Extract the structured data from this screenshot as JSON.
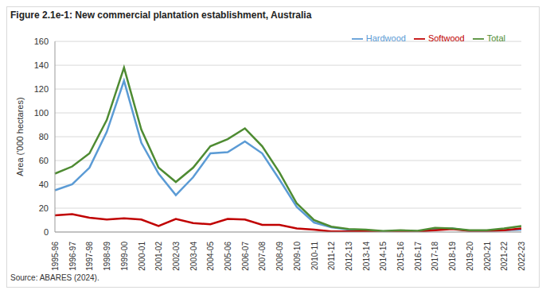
{
  "chart_data": {
    "type": "line",
    "title": "Figure 2.1e-1: New commercial plantation establishment, Australia",
    "source": "Source: ABARES (2024).",
    "y_label": "Area ('000 hectares)",
    "categories": [
      "1995-96",
      "1996-97",
      "1997-98",
      "1998-99",
      "1999-00",
      "2000-01",
      "2001-02",
      "2002-03",
      "2003-04",
      "2004-05",
      "2005-06",
      "2006-07",
      "2007-08",
      "2008-09",
      "2009-10",
      "2010-11",
      "2011-12",
      "2012-13",
      "2013-14",
      "2014-15",
      "2015-16",
      "2016-17",
      "2017-18",
      "2018-19",
      "2019-20",
      "2020-21",
      "2021-22",
      "2022-23"
    ],
    "series": [
      {
        "name": "Hardwood",
        "color": "#5B9BD5",
        "values": [
          35,
          40,
          54,
          84,
          127,
          75,
          49,
          31,
          46,
          66,
          67,
          76,
          66,
          44,
          21,
          8,
          4,
          2,
          1,
          0.5,
          1,
          0.5,
          2,
          3,
          1,
          1,
          1.5,
          2
        ]
      },
      {
        "name": "Softwood",
        "color": "#C00000",
        "values": [
          14,
          15,
          12,
          10.5,
          11.5,
          10.5,
          5,
          11,
          7.5,
          6.5,
          11,
          10.5,
          6,
          6,
          3,
          2,
          0.5,
          0.5,
          0.5,
          0.3,
          0.5,
          0.5,
          1.5,
          2.5,
          1,
          1,
          1.5,
          3
        ]
      },
      {
        "name": "Total",
        "color": "#4E8B32",
        "values": [
          49,
          55,
          66,
          94,
          138,
          86,
          54,
          42,
          54,
          72,
          78,
          87,
          72,
          50,
          24,
          10,
          4.5,
          2.5,
          2,
          0.8,
          1.5,
          1,
          3.5,
          3,
          1.5,
          1.5,
          3,
          5
        ]
      }
    ],
    "ylim": [
      0,
      160
    ],
    "yticks": [
      0,
      20,
      40,
      60,
      80,
      100,
      120,
      140,
      160
    ],
    "grid": true,
    "legend": "upper right"
  }
}
